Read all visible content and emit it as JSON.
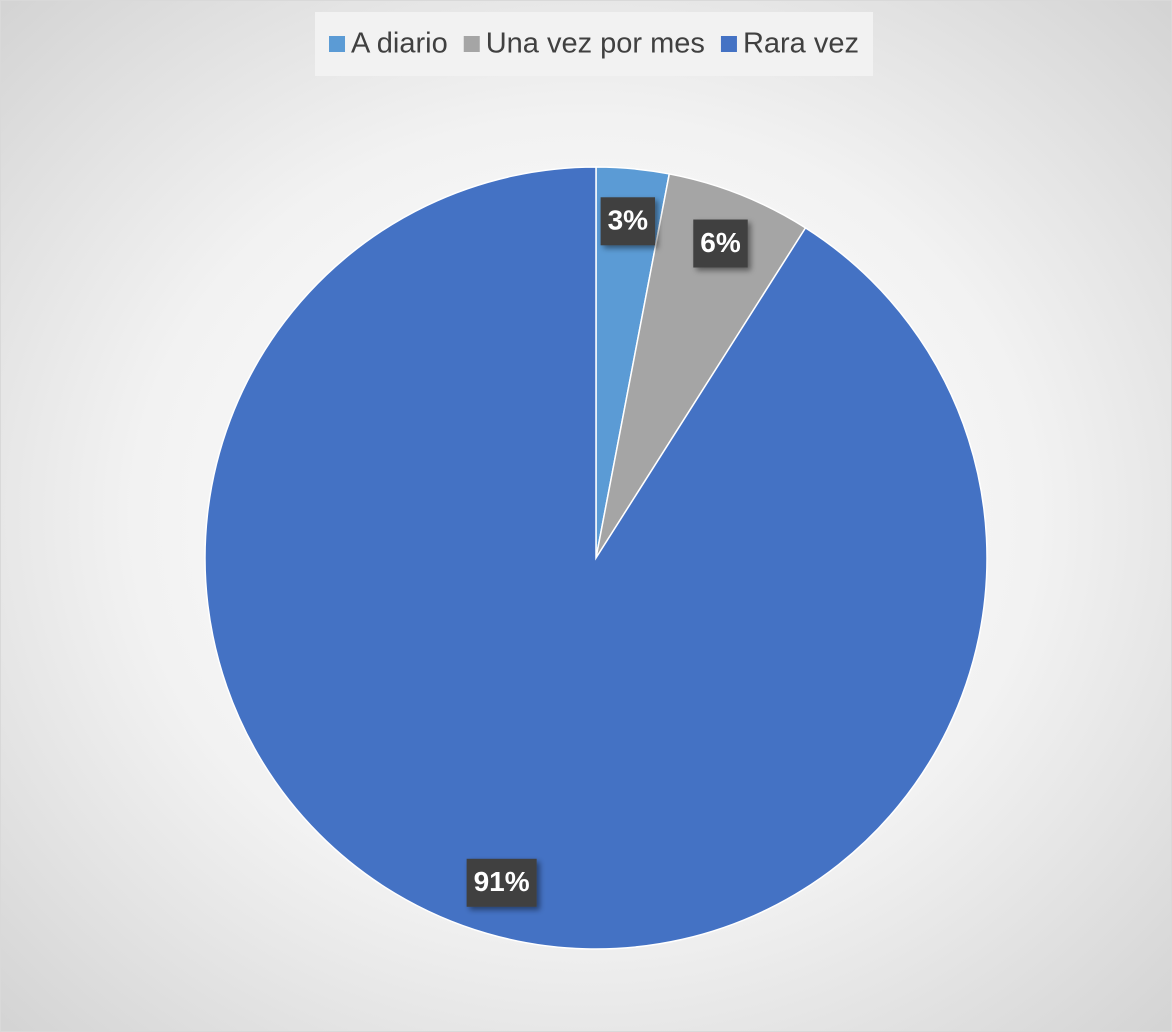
{
  "chart_data": {
    "type": "pie",
    "categories": [
      "A diario",
      "Una vez por mes",
      "Rara vez"
    ],
    "values": [
      3,
      6,
      91
    ],
    "value_labels": [
      "3%",
      "6%",
      "91%"
    ],
    "colors": [
      "#5b9bd5",
      "#a5a5a5",
      "#4472c4"
    ],
    "legend": "top"
  }
}
